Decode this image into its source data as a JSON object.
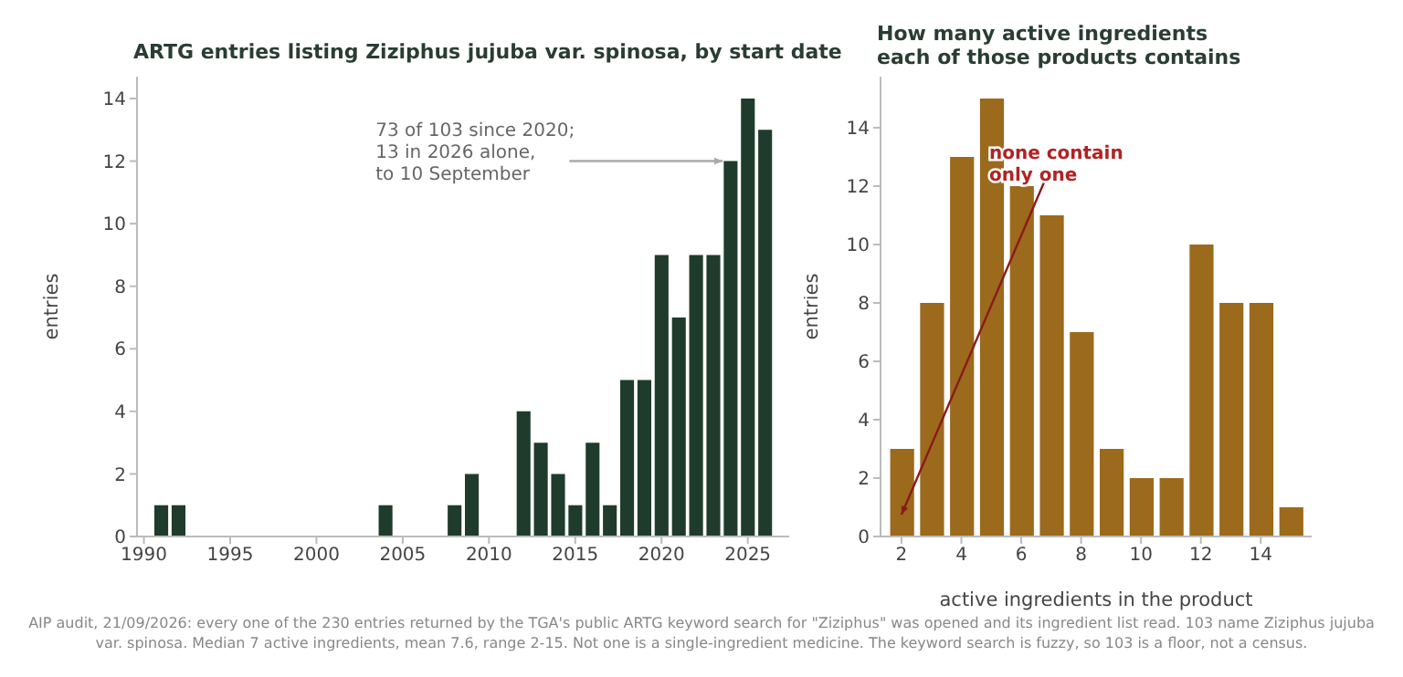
{
  "chart_data": [
    {
      "type": "bar",
      "title": "ARTG entries listing Ziziphus jujuba var. spinosa, by start date",
      "ylabel": "entries",
      "color": "#1f3b2c",
      "x": [
        1991,
        1992,
        2004,
        2008,
        2009,
        2012,
        2013,
        2014,
        2015,
        2016,
        2017,
        2018,
        2019,
        2020,
        2021,
        2022,
        2023,
        2024,
        2025,
        2026
      ],
      "values": [
        1,
        1,
        1,
        1,
        2,
        4,
        3,
        2,
        1,
        3,
        1,
        5,
        5,
        9,
        7,
        9,
        9,
        12,
        14,
        13
      ],
      "xlim": [
        1989.6,
        2027.4
      ],
      "xticks": [
        1990,
        1995,
        2000,
        2005,
        2010,
        2015,
        2020,
        2025
      ],
      "ylim": [
        0,
        14.7
      ],
      "yticks": [
        0,
        2,
        4,
        6,
        8,
        10,
        12,
        14
      ],
      "grid": false,
      "legend": false,
      "annotations": [
        {
          "text": "73 of 103 since 2020;\n13 in 2026 alone,\nto 10 September",
          "x": 2024,
          "y": 12
        },
        "AIP audit, 21/09/2026: every one of the 230 entries returned by the TGA's public ARTG keyword search for \"Ziziphus\" was opened and its ingredient list read. 103 name Ziziphus jujuba var. spinosa. Median 7 active ingredients, mean 7.6, range 2-15. Not one is a single-ingredient medicine. The keyword search is fuzzy, so 103 is a floor, not a census."
      ]
    },
    {
      "type": "bar",
      "title": "How many active ingredients\neach of those products contains",
      "xlabel": "active ingredients in the product",
      "ylabel": "entries",
      "color": "#9b6a1c",
      "x": [
        2,
        3,
        4,
        5,
        6,
        7,
        8,
        9,
        10,
        11,
        12,
        13,
        14,
        15
      ],
      "values": [
        3,
        8,
        13,
        15,
        12,
        11,
        7,
        3,
        2,
        2,
        10,
        8,
        8,
        1
      ],
      "xlim": [
        1.3,
        15.7
      ],
      "xticks": [
        2,
        4,
        6,
        8,
        10,
        12,
        14
      ],
      "ylim": [
        0,
        15.75
      ],
      "yticks": [
        0,
        2,
        4,
        6,
        8,
        10,
        12,
        14
      ],
      "grid": false,
      "legend": false,
      "annotations": [
        {
          "text": "none contain\nonly one",
          "x": 2,
          "y": 1
        }
      ]
    }
  ]
}
